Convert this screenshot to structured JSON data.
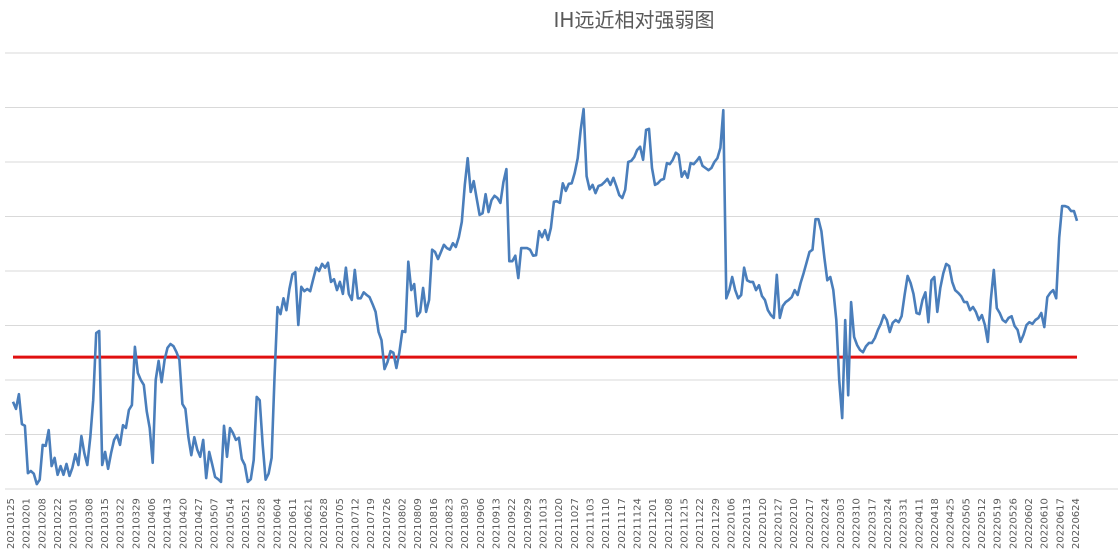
{
  "chart_data": {
    "type": "line",
    "title": "IH远近相对强弱图",
    "xlabel": "",
    "ylabel": "",
    "ylim": [
      0,
      8
    ],
    "y_tick_labels_shown": false,
    "grid": "horizontal",
    "legend": "none",
    "x_ticks": [
      "20210125",
      "20210201",
      "20210208",
      "20210222",
      "20210301",
      "20210308",
      "20210315",
      "20210322",
      "20210329",
      "20210406",
      "20210413",
      "20210420",
      "20210427",
      "20210507",
      "20210514",
      "20210521",
      "20210528",
      "20210604",
      "20210611",
      "20210621",
      "20210628",
      "20210705",
      "20210712",
      "20210719",
      "20210726",
      "20210802",
      "20210809",
      "20210816",
      "20210823",
      "20210830",
      "20210906",
      "20210913",
      "20210922",
      "20210929",
      "20211013",
      "20211020",
      "20211027",
      "20211103",
      "20211110",
      "20211117",
      "20211124",
      "20211201",
      "20211208",
      "20211215",
      "20211222",
      "20211229",
      "20220106",
      "20220113",
      "20220120",
      "20220127",
      "20220210",
      "20220217",
      "20220224",
      "20220303",
      "20220310",
      "20220317",
      "20220324",
      "20220331",
      "20220411",
      "20220418",
      "20220425",
      "20220505",
      "20220512",
      "20220519",
      "20220526",
      "20220602",
      "20220610",
      "20220617",
      "20220624"
    ],
    "series": [
      {
        "color": "#4a7ebb",
        "values": [
          1.6,
          1.47,
          1.74,
          1.19,
          1.16,
          0.29,
          0.33,
          0.28,
          0.09,
          0.17,
          0.81,
          0.79,
          1.08,
          0.42,
          0.57,
          0.26,
          0.42,
          0.26,
          0.46,
          0.24,
          0.39,
          0.64,
          0.44,
          0.97,
          0.66,
          0.44,
          0.95,
          1.63,
          2.86,
          2.9,
          0.44,
          0.68,
          0.37,
          0.66,
          0.9,
          0.99,
          0.81,
          1.17,
          1.12,
          1.45,
          1.54,
          2.61,
          2.13,
          2.0,
          1.91,
          1.43,
          1.12,
          0.48,
          2.0,
          2.35,
          1.96,
          2.37,
          2.59,
          2.66,
          2.62,
          2.51,
          2.37,
          1.56,
          1.47,
          0.95,
          0.62,
          0.95,
          0.72,
          0.59,
          0.9,
          0.2,
          0.68,
          0.46,
          0.22,
          0.18,
          0.13,
          1.16,
          0.59,
          1.12,
          1.03,
          0.9,
          0.94,
          0.55,
          0.44,
          0.13,
          0.18,
          0.53,
          1.69,
          1.63,
          0.81,
          0.17,
          0.28,
          0.57,
          2.04,
          3.34,
          3.21,
          3.5,
          3.28,
          3.67,
          3.94,
          3.98,
          3.01,
          3.71,
          3.63,
          3.67,
          3.63,
          3.85,
          4.06,
          4.0,
          4.13,
          4.06,
          4.15,
          3.8,
          3.85,
          3.65,
          3.8,
          3.58,
          4.06,
          3.58,
          3.47,
          4.02,
          3.5,
          3.5,
          3.61,
          3.56,
          3.52,
          3.39,
          3.25,
          2.88,
          2.73,
          2.2,
          2.33,
          2.53,
          2.5,
          2.22,
          2.51,
          2.9,
          2.88,
          4.17,
          3.65,
          3.76,
          3.17,
          3.25,
          3.69,
          3.25,
          3.47,
          4.39,
          4.35,
          4.22,
          4.35,
          4.48,
          4.42,
          4.39,
          4.51,
          4.44,
          4.62,
          4.9,
          5.58,
          6.07,
          5.45,
          5.65,
          5.34,
          5.03,
          5.06,
          5.41,
          5.08,
          5.3,
          5.38,
          5.34,
          5.25,
          5.63,
          5.87,
          4.18,
          4.18,
          4.28,
          3.87,
          4.42,
          4.42,
          4.42,
          4.39,
          4.28,
          4.29,
          4.73,
          4.62,
          4.75,
          4.57,
          4.79,
          5.27,
          5.28,
          5.25,
          5.61,
          5.47,
          5.6,
          5.61,
          5.8,
          6.07,
          6.59,
          6.97,
          5.74,
          5.5,
          5.58,
          5.43,
          5.56,
          5.58,
          5.63,
          5.69,
          5.58,
          5.71,
          5.56,
          5.39,
          5.34,
          5.49,
          6.0,
          6.02,
          6.09,
          6.22,
          6.28,
          6.04,
          6.59,
          6.61,
          5.89,
          5.58,
          5.61,
          5.67,
          5.69,
          5.98,
          5.96,
          6.04,
          6.17,
          6.13,
          5.73,
          5.83,
          5.71,
          5.98,
          5.96,
          6.02,
          6.09,
          5.93,
          5.89,
          5.85,
          5.89,
          6.0,
          6.07,
          6.26,
          6.95,
          3.5,
          3.65,
          3.89,
          3.65,
          3.5,
          3.56,
          4.06,
          3.83,
          3.8,
          3.8,
          3.65,
          3.74,
          3.54,
          3.47,
          3.28,
          3.19,
          3.14,
          3.93,
          3.14,
          3.36,
          3.43,
          3.47,
          3.52,
          3.65,
          3.56,
          3.78,
          3.96,
          4.15,
          4.35,
          4.39,
          4.95,
          4.95,
          4.73,
          4.24,
          3.83,
          3.89,
          3.65,
          3.1,
          2.0,
          1.3,
          3.1,
          1.72,
          3.43,
          2.79,
          2.64,
          2.55,
          2.51,
          2.62,
          2.68,
          2.68,
          2.77,
          2.92,
          3.03,
          3.19,
          3.1,
          2.88,
          3.05,
          3.1,
          3.06,
          3.17,
          3.56,
          3.91,
          3.78,
          3.58,
          3.23,
          3.21,
          3.47,
          3.61,
          3.06,
          3.83,
          3.89,
          3.25,
          3.69,
          3.96,
          4.13,
          4.09,
          3.8,
          3.65,
          3.6,
          3.54,
          3.43,
          3.43,
          3.28,
          3.34,
          3.25,
          3.1,
          3.19,
          3.01,
          2.7,
          3.47,
          4.02,
          3.32,
          3.23,
          3.1,
          3.06,
          3.14,
          3.17,
          2.99,
          2.92,
          2.7,
          2.83,
          3.01,
          3.06,
          3.03,
          3.1,
          3.14,
          3.23,
          2.97,
          3.52,
          3.6,
          3.65,
          3.5,
          4.61,
          5.19,
          5.19,
          5.17,
          5.1,
          5.1,
          4.92
        ]
      },
      {
        "color": "#e01010",
        "reference_level": 2.42
      }
    ]
  }
}
